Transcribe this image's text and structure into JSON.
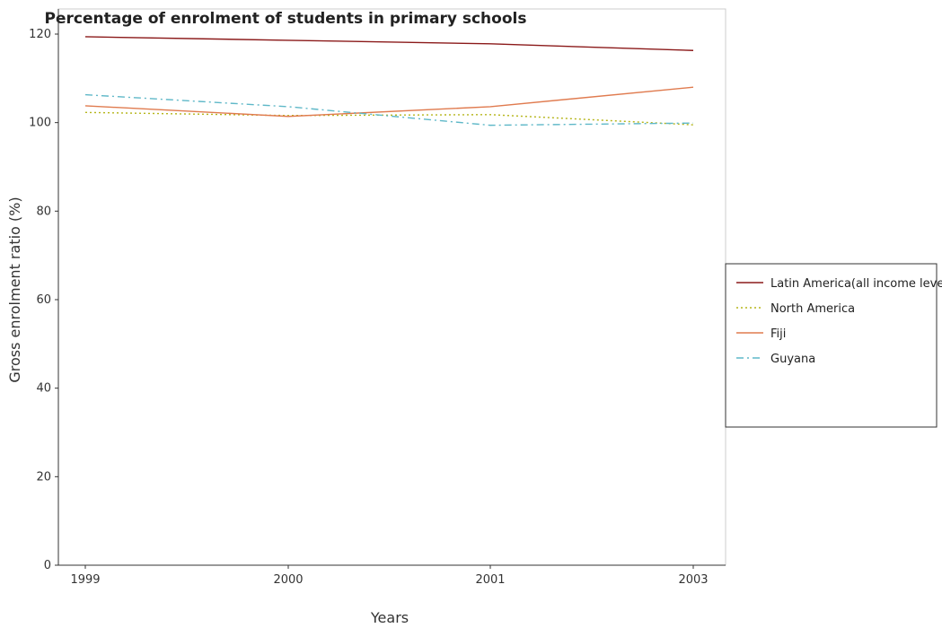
{
  "chart_data": {
    "type": "line",
    "title": "Percentage of enrolment of students in primary schools",
    "xlabel": "Years",
    "ylabel": "Gross enrolment ratio (%)",
    "categories": [
      "1999",
      "2000",
      "2001",
      "2003"
    ],
    "ylim": [
      0,
      120
    ],
    "yticks": [
      0,
      20,
      40,
      60,
      80,
      100,
      120
    ],
    "grid": false,
    "legend_position": "right",
    "series": [
      {
        "name": "Latin America(all income levels)",
        "values": [
          119.4,
          118.6,
          117.8,
          116.3
        ],
        "color": "#8b1a1a",
        "dash": "solid"
      },
      {
        "name": "North America",
        "values": [
          102.3,
          101.6,
          101.8,
          99.5
        ],
        "color": "#b5b51a",
        "dash": "dotted"
      },
      {
        "name": "Fiji",
        "values": [
          103.8,
          101.4,
          103.6,
          108.0
        ],
        "color": "#e07b4f",
        "dash": "solid"
      },
      {
        "name": "Guyana",
        "values": [
          106.3,
          103.6,
          99.4,
          99.9
        ],
        "color": "#5fb8c8",
        "dash": "dashdot"
      }
    ]
  }
}
